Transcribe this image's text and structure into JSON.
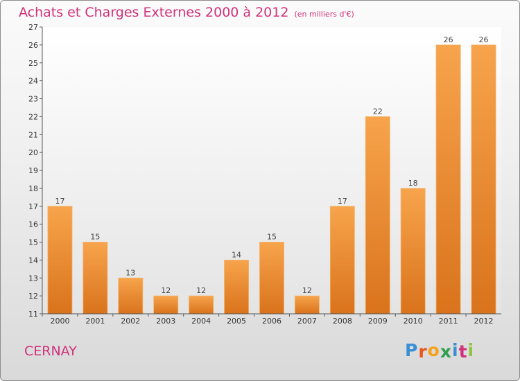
{
  "header": {
    "title": "Achats et Charges Externes 2000 à 2012",
    "subtitle": "(en milliers d'€)"
  },
  "footer": {
    "commune": "CERNAY",
    "logo_letters": [
      "P",
      "r",
      "o",
      "x",
      "i",
      "t",
      "i"
    ],
    "logo_colors": [
      "#3a8fd4",
      "#e8561e",
      "#f4a21a",
      "#2f9f4f",
      "#3a8fd4",
      "#d0317a",
      "#8fc43e"
    ]
  },
  "colors": {
    "title": "#d0317a",
    "bar_light": "#f7a44c",
    "bar_dark": "#d9731c",
    "plot_bg_top": "#ffffff",
    "plot_bg_bottom": "#e4e4e4"
  },
  "chart_data": {
    "type": "bar",
    "categories": [
      "2000",
      "2001",
      "2002",
      "2003",
      "2004",
      "2005",
      "2006",
      "2007",
      "2008",
      "2009",
      "2010",
      "2011",
      "2012"
    ],
    "values": [
      17,
      15,
      13,
      12,
      12,
      14,
      15,
      12,
      17,
      22,
      18,
      26,
      26
    ],
    "data_labels": [
      "17",
      "15",
      "13",
      "12",
      "12",
      "14",
      "15",
      "12",
      "17",
      "22",
      "18",
      "26",
      "26"
    ],
    "yticks": [
      11,
      12,
      13,
      14,
      15,
      16,
      17,
      18,
      19,
      20,
      21,
      22,
      23,
      24,
      25,
      26,
      27
    ],
    "ylim": [
      11,
      27
    ],
    "title": "Achats et Charges Externes 2000 à 2012",
    "xlabel": "",
    "ylabel": "",
    "grid": false
  }
}
